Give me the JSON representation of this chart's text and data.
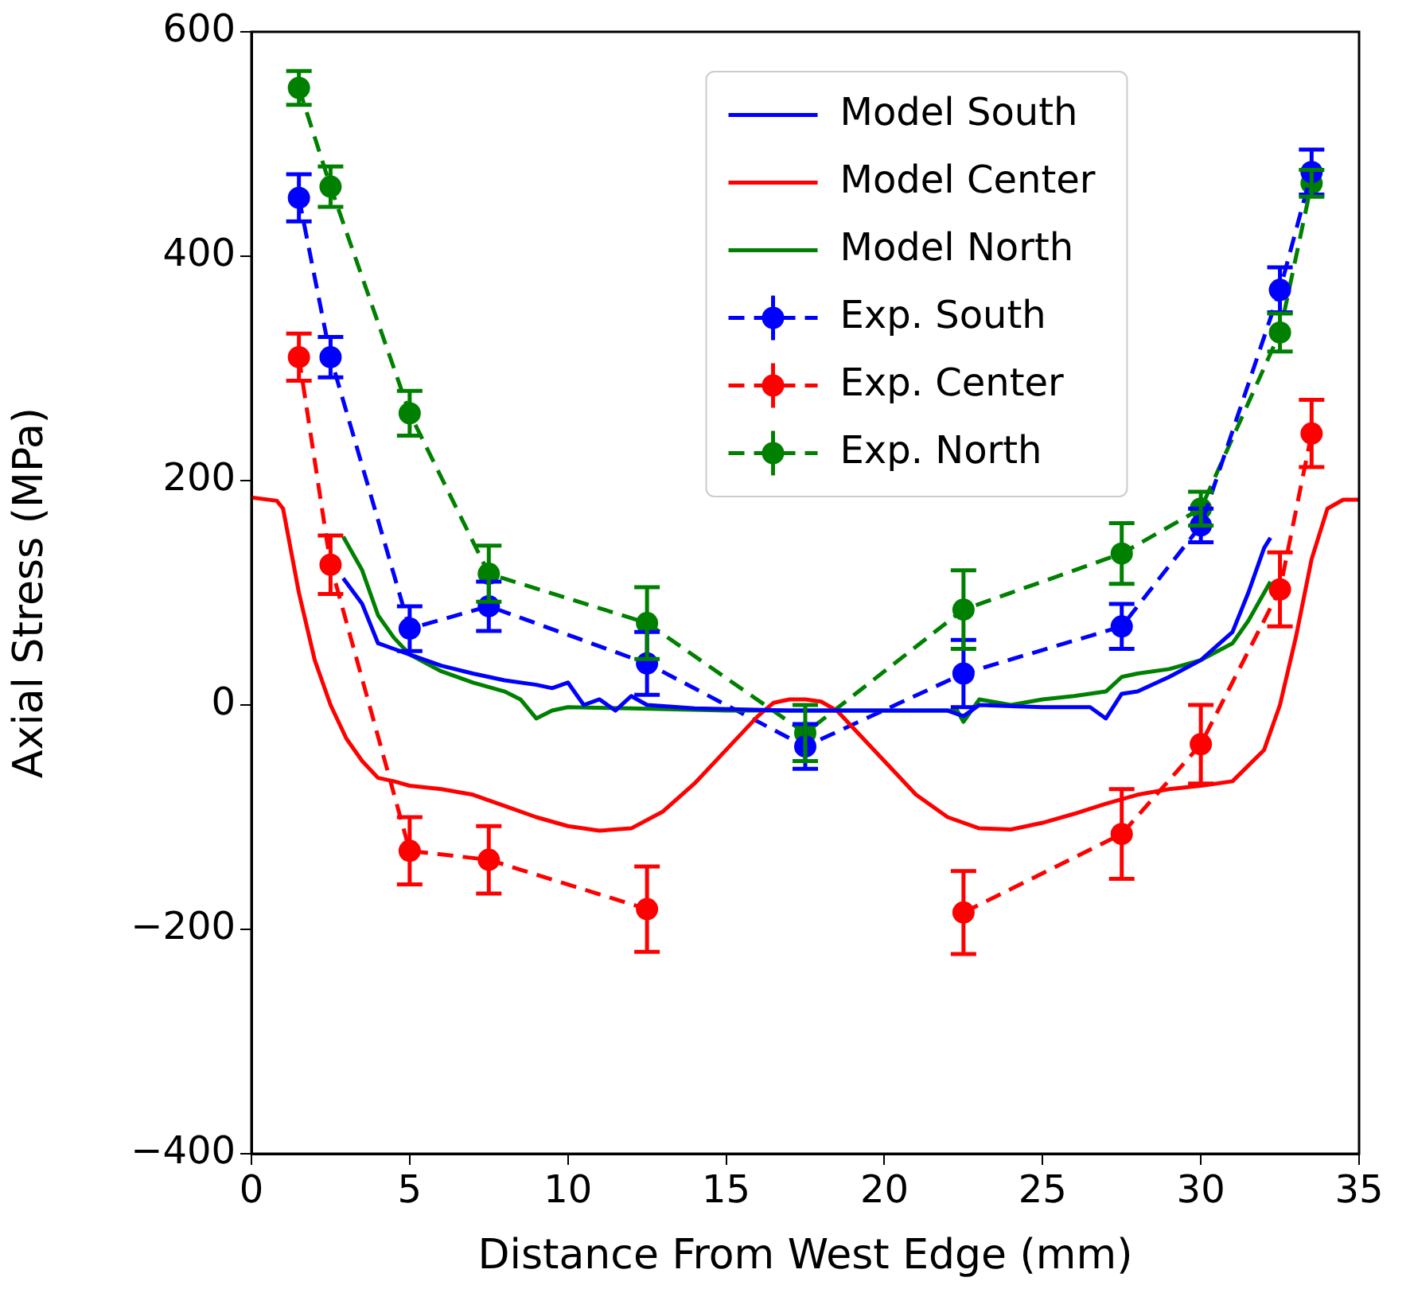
{
  "chart_data": {
    "type": "line",
    "xlabel": "Distance From West Edge (mm)",
    "ylabel": "Axial Stress (MPa)",
    "xlim": [
      0,
      35
    ],
    "ylim": [
      -400,
      600
    ],
    "xticks": [
      0,
      5,
      10,
      15,
      20,
      25,
      30,
      35
    ],
    "yticks": [
      -400,
      -200,
      0,
      200,
      400,
      600
    ],
    "grid": false,
    "legend": "top center",
    "series": [
      {
        "name": "Model South",
        "color": "#0000ff",
        "line_style": "solid",
        "marker": "none",
        "x": [
          2.9,
          3.5,
          4,
          4.5,
          5,
          6,
          7,
          8,
          9,
          9.5,
          10,
          10.5,
          11,
          11.5,
          12,
          12.5,
          14,
          17,
          20,
          22,
          22.5,
          23,
          25,
          26.5,
          27,
          27.5,
          28,
          29,
          30,
          31,
          31.5,
          32,
          32.2
        ],
        "values": [
          113,
          90,
          55,
          50,
          45,
          35,
          28,
          22,
          18,
          15,
          20,
          0,
          5,
          -5,
          8,
          0,
          -3,
          -5,
          -5,
          -5,
          -10,
          0,
          -2,
          -2,
          -12,
          10,
          12,
          25,
          40,
          65,
          100,
          140,
          149
        ]
      },
      {
        "name": "Model Center",
        "color": "#ff0000",
        "line_style": "solid",
        "marker": "none",
        "x": [
          0,
          0.8,
          1,
          1.5,
          2,
          2.5,
          3,
          3.5,
          4,
          4.5,
          5,
          6,
          7,
          8,
          9,
          10,
          11,
          12,
          13,
          14,
          15,
          16,
          16.5,
          17,
          17.5,
          18,
          18.5,
          19,
          20,
          21,
          22,
          23,
          24,
          25,
          26,
          27,
          28,
          29,
          30,
          31,
          32,
          32.5,
          33,
          33.5,
          34,
          34.5,
          35
        ],
        "values": [
          185,
          182,
          175,
          100,
          40,
          0,
          -30,
          -50,
          -65,
          -68,
          -72,
          -75,
          -80,
          -90,
          -100,
          -108,
          -112,
          -110,
          -95,
          -70,
          -40,
          -10,
          2,
          5,
          5,
          3,
          -5,
          -20,
          -50,
          -80,
          -100,
          -110,
          -111,
          -105,
          -97,
          -88,
          -80,
          -75,
          -72,
          -68,
          -40,
          0,
          60,
          130,
          175,
          183,
          183
        ]
      },
      {
        "name": "Model North",
        "color": "#008000",
        "line_style": "solid",
        "marker": "none",
        "x": [
          2.9,
          3.5,
          4,
          4.5,
          5,
          6,
          7,
          8,
          8.5,
          9,
          9.5,
          10,
          12,
          15,
          17,
          20,
          22,
          22.3,
          22.5,
          23,
          24,
          25,
          26,
          27,
          27.5,
          28,
          29,
          30,
          31,
          31.5,
          32,
          32.2
        ],
        "values": [
          150,
          120,
          80,
          60,
          45,
          30,
          20,
          12,
          5,
          -12,
          -5,
          -2,
          -3,
          -5,
          -5,
          -5,
          -5,
          -5,
          -15,
          5,
          0,
          5,
          8,
          12,
          25,
          28,
          32,
          40,
          55,
          75,
          100,
          110
        ]
      },
      {
        "name": "Exp. South",
        "color": "#0000ff",
        "line_style": "dashed",
        "marker": "circle",
        "x": [
          1.5,
          2.5,
          5,
          7.5,
          12.5,
          17.5,
          22.5,
          27.5,
          30,
          32.5,
          33.5
        ],
        "values": [
          452,
          310,
          68,
          88,
          37,
          -37,
          28,
          70,
          160,
          370,
          475
        ],
        "errors": [
          21,
          18,
          20,
          22,
          28,
          20,
          30,
          20,
          15,
          20,
          20
        ]
      },
      {
        "name": "Exp. Center",
        "color": "#ff0000",
        "line_style": "dashed",
        "marker": "circle",
        "x": [
          1.5,
          2.5,
          5,
          7.5,
          12.5,
          17.5,
          22.5,
          27.5,
          30,
          32.5,
          33.5
        ],
        "values": [
          310,
          125,
          -130,
          -138,
          -182,
          null,
          -185,
          -115,
          -35,
          103,
          242
        ],
        "errors": [
          21,
          26,
          30,
          30,
          38,
          null,
          37,
          40,
          35,
          33,
          30
        ]
      },
      {
        "name": "Exp. North",
        "color": "#008000",
        "line_style": "dashed",
        "marker": "circle",
        "x": [
          1.5,
          2.5,
          5,
          7.5,
          12.5,
          17.5,
          22.5,
          27.5,
          30,
          32.5,
          33.5
        ],
        "values": [
          550,
          462,
          260,
          117,
          73,
          -25,
          85,
          135,
          175,
          332,
          465
        ],
        "errors": [
          15,
          18,
          20,
          25,
          32,
          25,
          35,
          27,
          15,
          17,
          12
        ]
      }
    ]
  }
}
